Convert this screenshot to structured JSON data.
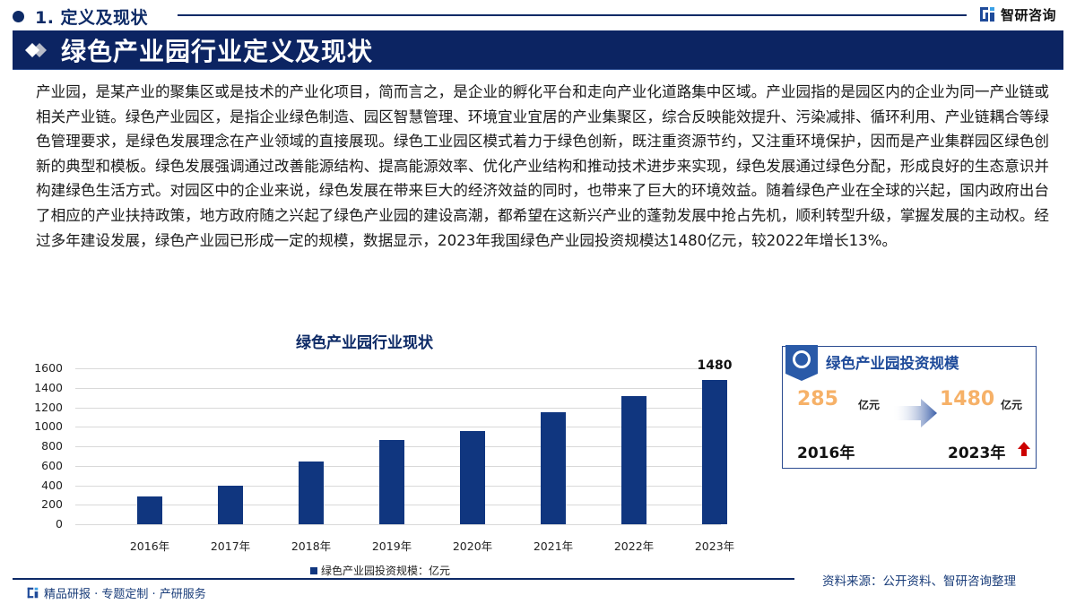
{
  "header": {
    "section_label": "1. 定义及现状",
    "brand_name": "智研咨询",
    "banner_title": "绿色产业园行业定义及现状"
  },
  "body": {
    "paragraph": "产业园，是某产业的聚集区或是技术的产业化项目，简而言之，是企业的孵化平台和走向产业化道路集中区域。产业园指的是园区内的企业为同一产业链或相关产业链。绿色产业园区，是指企业绿色制造、园区智慧管理、环境宜业宜居的产业集聚区，综合反映能效提升、污染减排、循环利用、产业链耦合等绿色管理要求，是绿色发展理念在产业领域的直接展现。绿色工业园区模式着力于绿色创新，既注重资源节约，又注重环境保护，因而是产业集群园区绿色创新的典型和模板。绿色发展强调通过改善能源结构、提高能源效率、优化产业结构和推动技术进步来实现，绿色发展通过绿色分配，形成良好的生态意识并构建绿色生活方式。对园区中的企业来说，绿色发展在带来巨大的经济效益的同时，也带来了巨大的环境效益。随着绿色产业在全球的兴起，国内政府出台了相应的产业扶持政策，地方政府随之兴起了绿色产业园的建设高潮，都希望在这新兴产业的蓬勃发展中抢占先机，顺利转型升级，掌握发展的主动权。经过多年建设发展，绿色产业园已形成一定的规模，数据显示，2023年我国绿色产业园投资规模达1480亿元，较2022年增长13%。"
  },
  "chart_data": {
    "type": "bar",
    "title": "绿色产业园行业现状",
    "categories": [
      "2016年",
      "2017年",
      "2018年",
      "2019年",
      "2020年",
      "2021年",
      "2022年",
      "2023年"
    ],
    "series": [
      {
        "name": "绿色产业园投资规模：亿元",
        "values": [
          285,
          395,
          645,
          868,
          957,
          1147,
          1312,
          1480
        ]
      }
    ],
    "data_labels": {
      "2023年": "1480"
    },
    "xlabel": "",
    "ylabel": "",
    "ylim": [
      0,
      1600
    ],
    "yticks": [
      "0",
      "200",
      "400",
      "600",
      "800",
      "1000",
      "1200",
      "1400",
      "1600"
    ],
    "grid": true,
    "legend_position": "bottom",
    "bar_color": "#10367f"
  },
  "card": {
    "title": "绿色产业园投资规模",
    "start_value": "285",
    "start_unit": "亿元",
    "end_value": "1480",
    "end_unit": "亿元",
    "start_year": "2016年",
    "end_year": "2023年",
    "value_color": "#f6b168",
    "trend_color": "#cc0000"
  },
  "footer": {
    "tagline": "精品研报 · 专题定制 · 产研服务",
    "source": "资料来源：公开资料、智研咨询整理"
  },
  "colors": {
    "primary": "#0c2462",
    "accent": "#1f4b9a"
  }
}
